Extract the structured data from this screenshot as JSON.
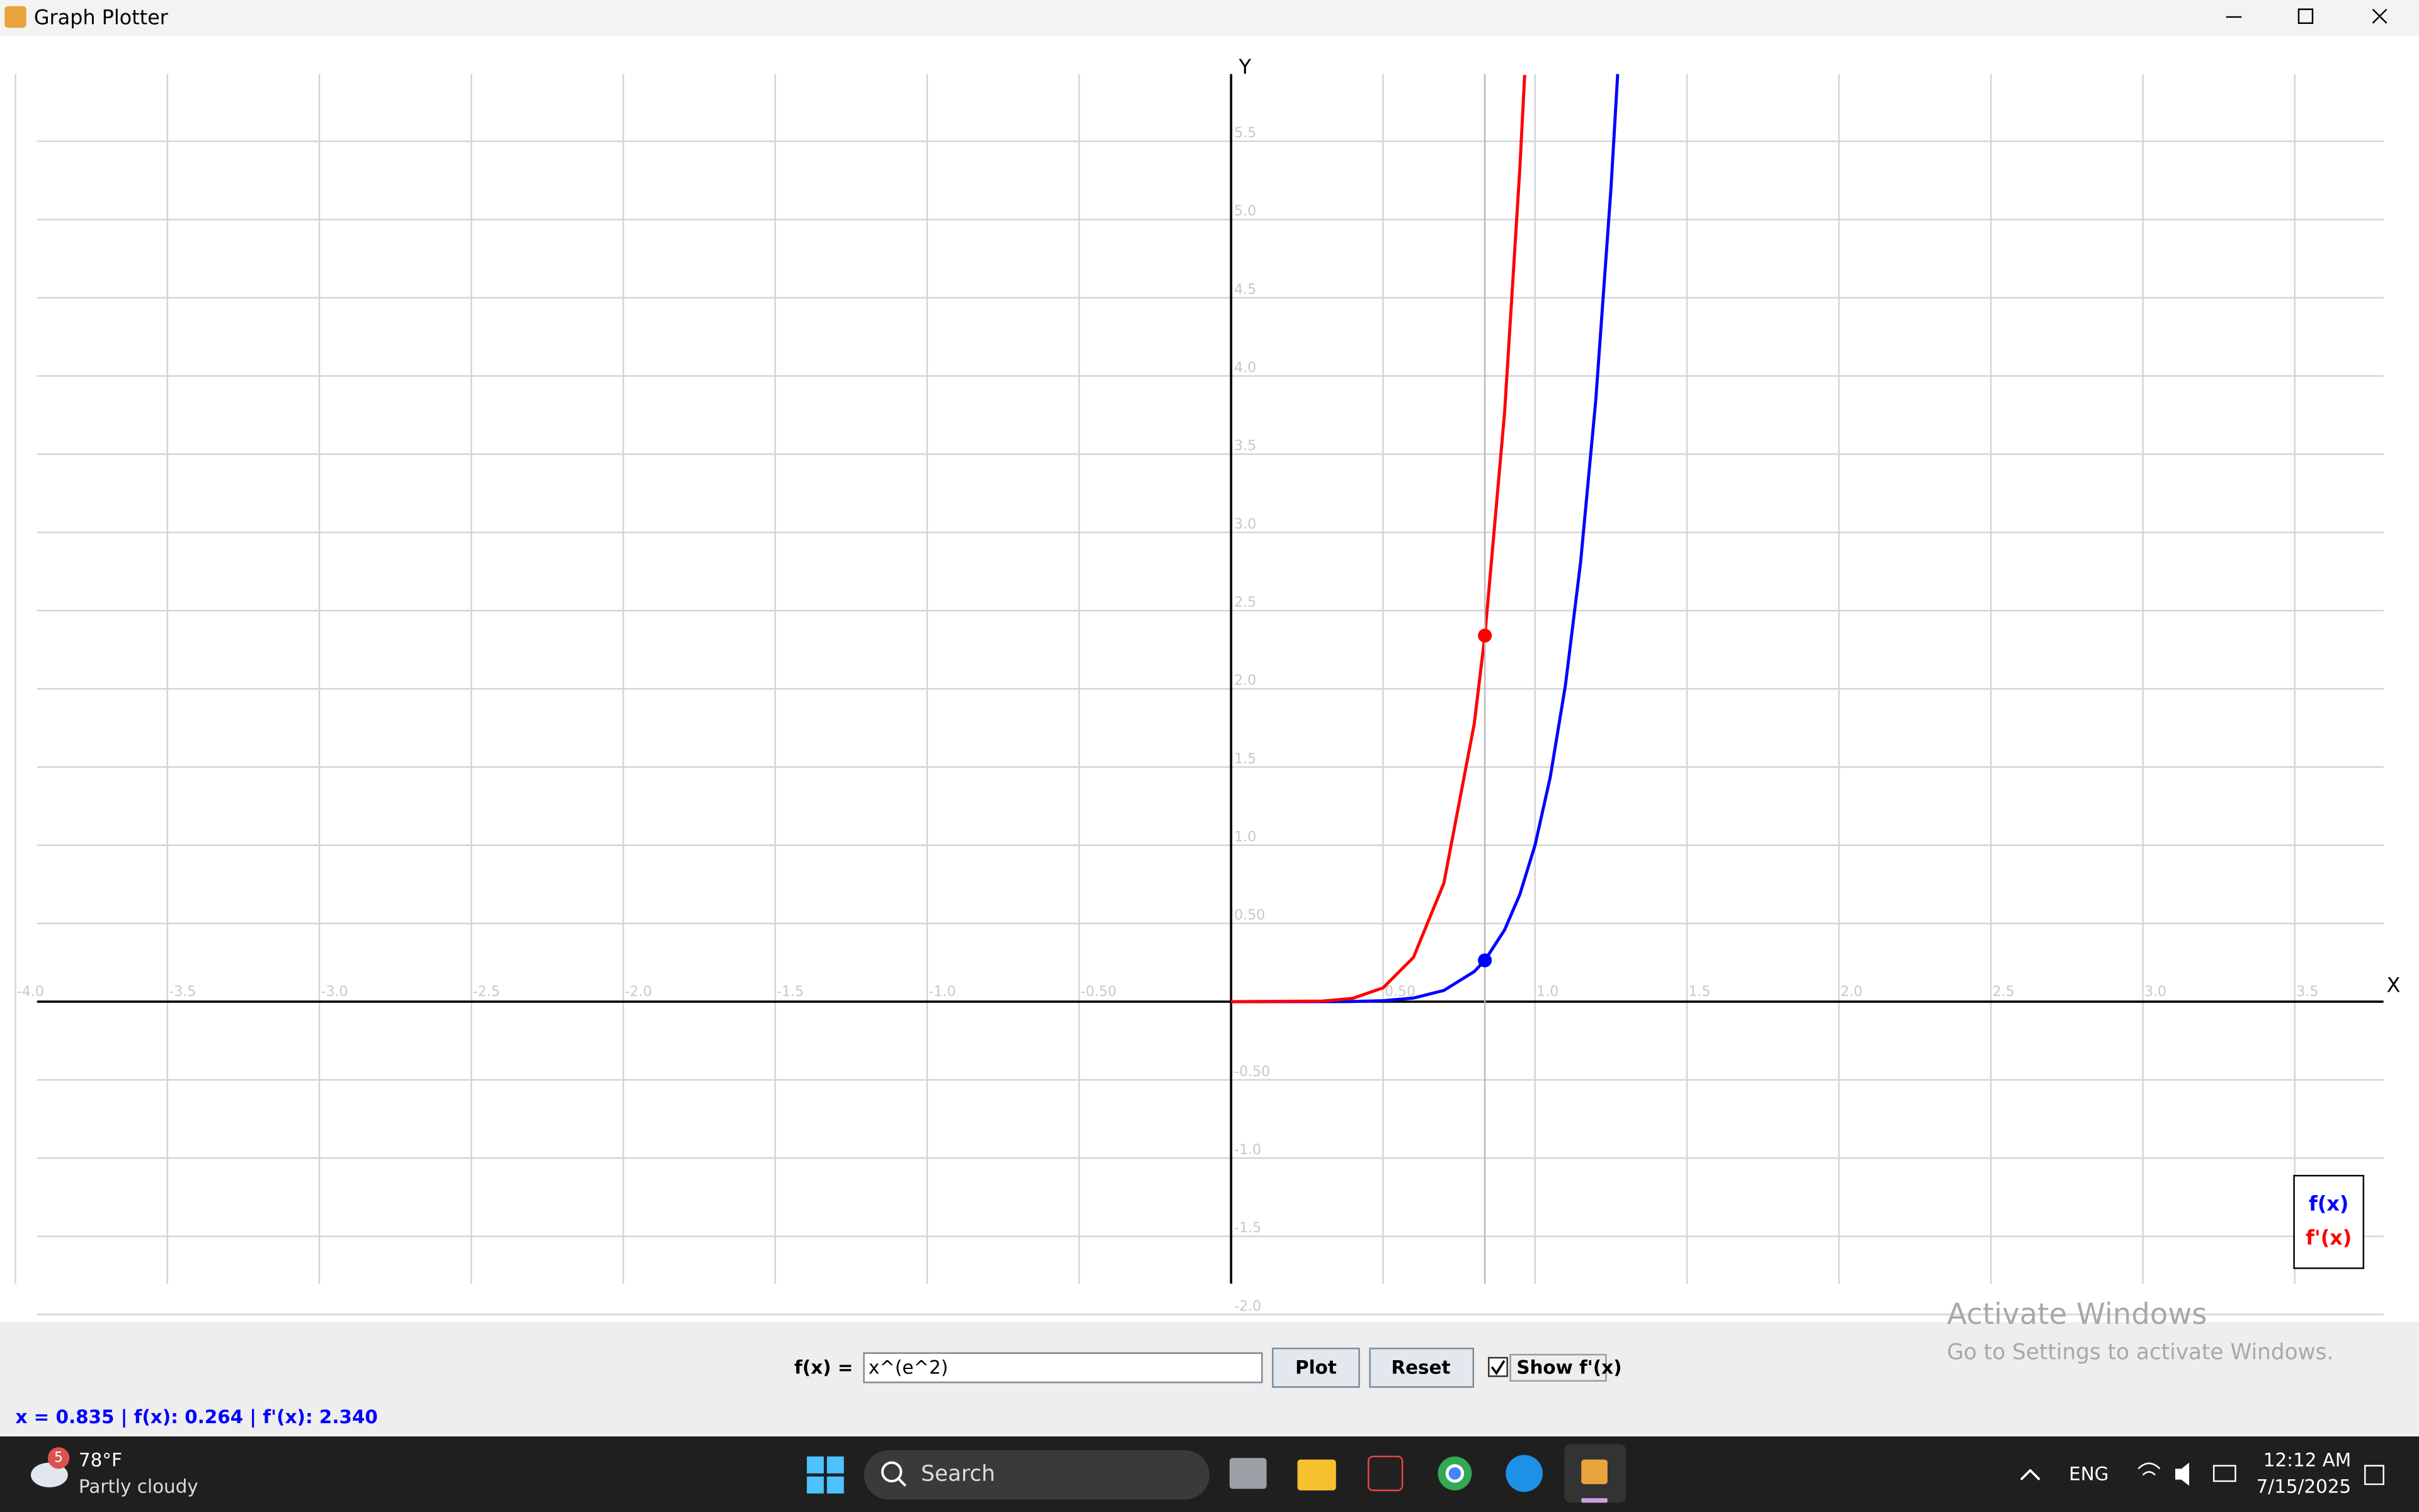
{
  "window": {
    "title": "Graph Plotter"
  },
  "chart_data": {
    "type": "line",
    "x_label": "X",
    "y_label": "Y",
    "xlim": [
      -4,
      3.8
    ],
    "ylim": [
      -2.0,
      5.93
    ],
    "xticks": [
      {
        "value": -4,
        "label": "-4.0"
      },
      -3.5,
      {
        "value": -3,
        "label": "-3.0"
      },
      -2.5,
      {
        "value": -2,
        "label": "-2.0"
      },
      -1.5,
      {
        "value": -1,
        "label": "-1.0"
      },
      {
        "value": -0.5,
        "label": "-0.50"
      },
      {
        "value": 0.5,
        "label": "0.50"
      },
      {
        "value": 1,
        "label": "1.0"
      },
      1.5,
      {
        "value": 2,
        "label": "2.0"
      },
      2.5,
      {
        "value": 3,
        "label": "3.0"
      },
      3.5
    ],
    "yticks": [
      5.5,
      {
        "value": 5,
        "label": "5.0"
      },
      4.5,
      {
        "value": 4,
        "label": "4.0"
      },
      3.5,
      {
        "value": 3,
        "label": "3.0"
      },
      2.5,
      {
        "value": 2,
        "label": "2.0"
      },
      1.5,
      {
        "value": 1,
        "label": "1.0"
      },
      {
        "value": 0.5,
        "label": "0.50"
      },
      {
        "value": -0.5,
        "label": "-0.50"
      },
      {
        "value": -1,
        "label": "-1.0"
      },
      -1.5,
      {
        "value": -2,
        "label": "-2.0"
      }
    ],
    "grid": true,
    "series": [
      {
        "name": "f(x)",
        "color": "#0000ff",
        "x": [
          0,
          0.3,
          0.4,
          0.5,
          0.6,
          0.7,
          0.8,
          0.835,
          0.9,
          0.95,
          1.0,
          1.05,
          1.1,
          1.15,
          1.2,
          1.25,
          1.272
        ],
        "values": [
          0,
          0.000137,
          0.00115,
          0.00596,
          0.023,
          0.0717,
          0.192,
          0.264,
          0.459,
          0.685,
          1,
          1.434,
          2.022,
          2.809,
          3.847,
          5.201,
          5.93
        ]
      },
      {
        "name": "f'(x)",
        "color": "#ff0000",
        "x": [
          0,
          0.3,
          0.4,
          0.5,
          0.6,
          0.7,
          0.8,
          0.835,
          0.9,
          0.95,
          0.966
        ],
        "values": [
          0,
          0.00337,
          0.0212,
          0.0882,
          0.283,
          0.757,
          1.776,
          2.34,
          3.769,
          5.324,
          5.924
        ]
      }
    ],
    "cursor": {
      "x": 0.835,
      "f": 0.264,
      "df": 2.34
    },
    "legend": "bottom-right"
  },
  "controls": {
    "label": "f(x) =",
    "input": "x^(e^2)",
    "plot": "Plot",
    "reset": "Reset",
    "show_derivative": "Show f'(x)"
  },
  "status": "x = 0.835 | f(x): 0.264 | f'(x): 2.340",
  "watermark": {
    "title": "Activate Windows",
    "subtitle": "Go to Settings to activate Windows."
  },
  "taskbar": {
    "weather_badge": "5",
    "temperature": "78°F",
    "condition": "Partly cloudy",
    "search": "Search",
    "language": "ENG",
    "time": "12:12 AM",
    "date": "7/15/2025"
  }
}
